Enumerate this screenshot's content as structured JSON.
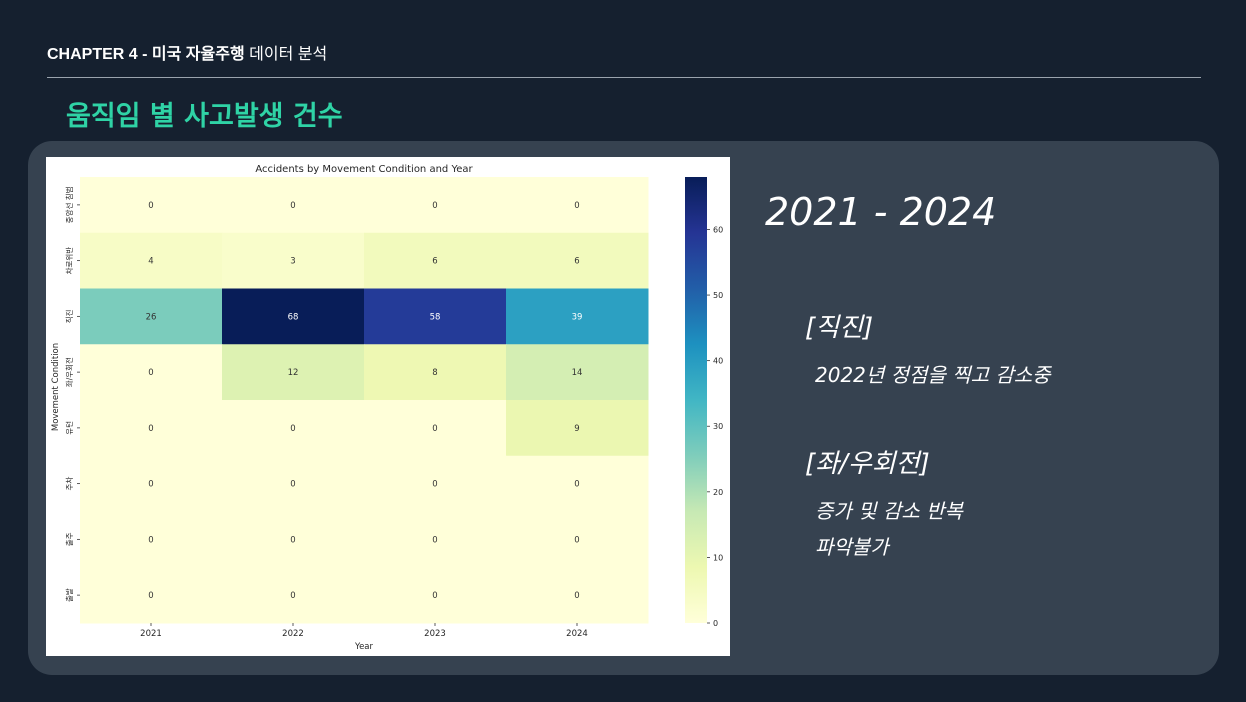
{
  "header": {
    "chapter_bold": "CHAPTER 4 - 미국 자율주행",
    "chapter_rest": "데이터 분석",
    "title": "움직임 별 사고발생 건수"
  },
  "notes": {
    "year_range": "2021 - 2024",
    "section1_title": "[직진]",
    "section1_text": "2022년 정점을 찍고 감소중",
    "section2_title": "[좌/우회전]",
    "section2_lines": [
      "증가 및 감소 반복",
      "파악불가"
    ]
  },
  "colors": {
    "background": "#15202f",
    "panel": "#364250",
    "title_accent": "#2fd3a6",
    "colormap": [
      "#ffffd9",
      "#edf8b1",
      "#c7e9b4",
      "#7fcdbb",
      "#41b6c4",
      "#1d91c0",
      "#225ea8",
      "#253494",
      "#081d58"
    ]
  },
  "chart_data": {
    "type": "heatmap",
    "title": "Accidents by Movement Condition and Year",
    "xlabel": "Year",
    "ylabel": "Movement Condition",
    "x": [
      "2021",
      "2022",
      "2023",
      "2024"
    ],
    "y": [
      "중앙선 침범",
      "차로위반",
      "직진",
      "좌/우회전",
      "유턴",
      "주차",
      "출주",
      "출발"
    ],
    "values": [
      [
        0,
        0,
        0,
        0
      ],
      [
        4,
        3,
        6,
        6
      ],
      [
        26,
        68,
        58,
        39
      ],
      [
        0,
        12,
        8,
        14
      ],
      [
        0,
        0,
        0,
        9
      ],
      [
        0,
        0,
        0,
        0
      ],
      [
        0,
        0,
        0,
        0
      ],
      [
        0,
        0,
        0,
        0
      ]
    ],
    "colorbar": {
      "range": [
        0,
        68
      ],
      "ticks": [
        0,
        10,
        20,
        30,
        40,
        50,
        60
      ]
    },
    "colormap": "YlGnBu",
    "annotated": true
  }
}
